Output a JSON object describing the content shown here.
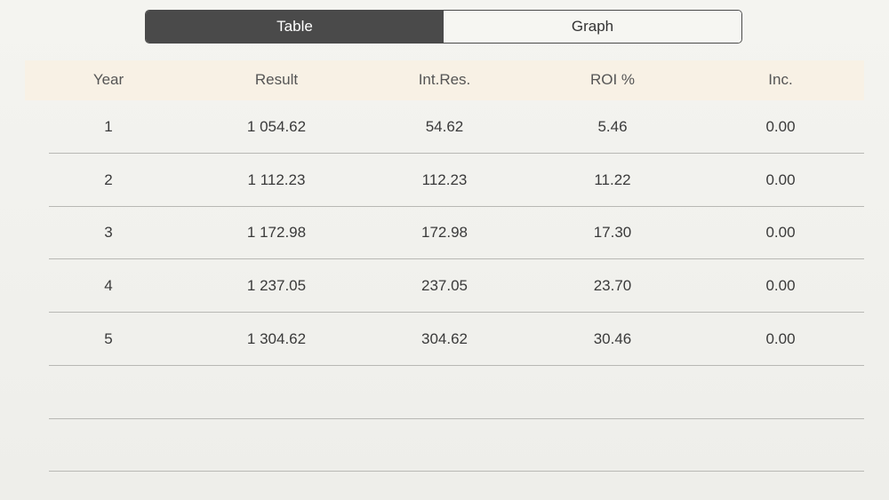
{
  "segmented_control": {
    "options": [
      "Table",
      "Graph"
    ],
    "selected": "Table"
  },
  "table": {
    "columns": [
      "Year",
      "Result",
      "Int.Res.",
      "ROI %",
      "Inc."
    ],
    "rows": [
      [
        "1",
        "1 054.62",
        "54.62",
        "5.46",
        "0.00"
      ],
      [
        "2",
        "1 112.23",
        "112.23",
        "11.22",
        "0.00"
      ],
      [
        "3",
        "1 172.98",
        "172.98",
        "17.30",
        "0.00"
      ],
      [
        "4",
        "1 237.05",
        "237.05",
        "23.70",
        "0.00"
      ],
      [
        "5",
        "1 304.62",
        "304.62",
        "30.46",
        "0.00"
      ]
    ],
    "empty_rows": 2
  },
  "colors": {
    "segment_active": "#4a4a4a",
    "header_bg": "#f8f1e5"
  }
}
